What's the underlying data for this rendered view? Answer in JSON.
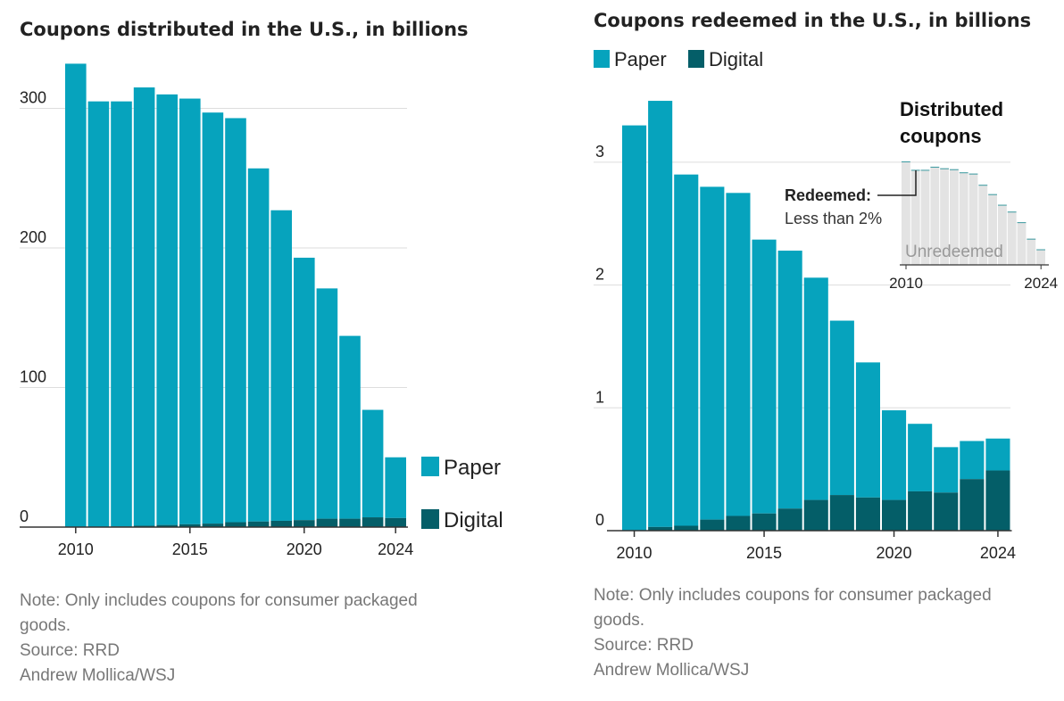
{
  "colors": {
    "paper": "#06a3bd",
    "digital": "#045e68",
    "grid": "#dddddd",
    "inset": "#e3e3e3"
  },
  "chart_data": [
    {
      "type": "bar",
      "stacked": true,
      "title": "Coupons distributed in the U.S., in billions",
      "categories": [
        2010,
        2011,
        2012,
        2013,
        2014,
        2015,
        2016,
        2017,
        2018,
        2019,
        2020,
        2021,
        2022,
        2023,
        2024
      ],
      "series": [
        {
          "name": "Digital",
          "values": [
            0,
            0,
            0.5,
            1,
            1.5,
            2,
            2.5,
            3.5,
            4,
            4.5,
            5,
            6,
            6,
            7,
            6.5
          ]
        },
        {
          "name": "Paper",
          "values": [
            332,
            305,
            304.5,
            314,
            308.5,
            305,
            294.5,
            289.5,
            253,
            222.5,
            188,
            165,
            131,
            77,
            43.5
          ]
        }
      ],
      "totals": [
        332,
        305,
        305,
        315,
        310,
        307,
        297,
        293,
        257,
        227,
        193,
        171,
        137,
        84,
        50
      ],
      "yticks": [
        0,
        100,
        200,
        300
      ],
      "xticks": [
        "2010",
        "2015",
        "2020",
        "2024"
      ],
      "ylim": [
        0,
        340
      ],
      "legend": [
        "Paper",
        "Digital"
      ],
      "legend_position": "bottom-right"
    },
    {
      "type": "bar",
      "stacked": true,
      "title": "Coupons redeemed in the U.S., in billions",
      "categories": [
        2010,
        2011,
        2012,
        2013,
        2014,
        2015,
        2016,
        2017,
        2018,
        2019,
        2020,
        2021,
        2022,
        2023,
        2024
      ],
      "series": [
        {
          "name": "Digital",
          "values": [
            0,
            0.03,
            0.04,
            0.09,
            0.12,
            0.14,
            0.18,
            0.25,
            0.29,
            0.27,
            0.25,
            0.32,
            0.31,
            0.42,
            0.49
          ]
        },
        {
          "name": "Paper",
          "values": [
            3.3,
            3.47,
            2.86,
            2.71,
            2.63,
            2.23,
            2.1,
            1.81,
            1.42,
            1.1,
            0.73,
            0.55,
            0.37,
            0.31,
            0.26
          ]
        }
      ],
      "totals": [
        3.3,
        3.5,
        2.9,
        2.8,
        2.75,
        2.37,
        2.28,
        2.06,
        1.71,
        1.37,
        0.98,
        0.87,
        0.68,
        0.73,
        0.75
      ],
      "yticks": [
        0,
        1,
        2,
        3
      ],
      "xticks": [
        "2010",
        "2015",
        "2020",
        "2024"
      ],
      "ylim": [
        0,
        3.6
      ],
      "legend": [
        "Paper",
        "Digital"
      ],
      "legend_position": "top-left",
      "inset": {
        "title": [
          "Distributed",
          "coupons"
        ],
        "annotation_label": "Redeemed:",
        "annotation_text": "Less than 2%",
        "area_label": "Unredeemed",
        "xticks": [
          "2010",
          "2024"
        ]
      }
    }
  ],
  "notes": {
    "left": [
      "Note: Only includes coupons for consumer packaged",
      "goods.",
      "Source: RRD",
      "Andrew Mollica/WSJ"
    ],
    "right": [
      "Note: Only includes coupons for consumer packaged",
      "goods.",
      "Source: RRD",
      "Andrew Mollica/WSJ"
    ]
  }
}
